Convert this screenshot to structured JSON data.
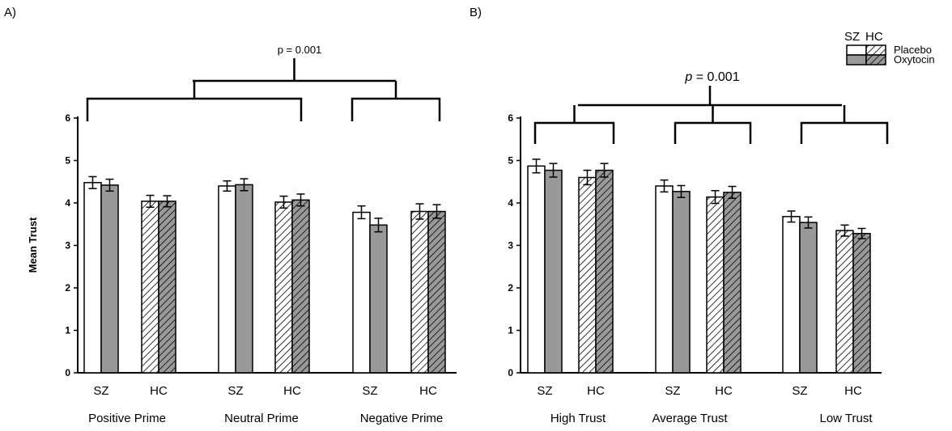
{
  "panels": [
    {
      "label": "A)",
      "ylabel": "Mean Trust",
      "chart_data": {
        "type": "bar",
        "ylim": [
          0,
          6
        ],
        "yticks": [
          0,
          1,
          2,
          3,
          4,
          5,
          6
        ],
        "groups": [
          {
            "name": "Positive Prime",
            "subgroups": [
              "SZ",
              "HC"
            ]
          },
          {
            "name": "Neutral Prime",
            "subgroups": [
              "SZ",
              "HC"
            ]
          },
          {
            "name": "Negative Prime",
            "subgroups": [
              "SZ",
              "HC"
            ]
          }
        ],
        "series": [
          {
            "name": "Placebo",
            "population": "SZ",
            "values": [
              4.48,
              4.4,
              3.78
            ]
          },
          {
            "name": "Oxytocin",
            "population": "SZ",
            "values": [
              4.42,
              4.43,
              3.48
            ]
          },
          {
            "name": "Placebo",
            "population": "HC",
            "values": [
              4.04,
              4.02,
              3.8
            ]
          },
          {
            "name": "Oxytocin",
            "population": "HC",
            "values": [
              4.04,
              4.07,
              3.8
            ]
          }
        ],
        "errors": [
          [
            0.14,
            0.12,
            0.15
          ],
          [
            0.14,
            0.14,
            0.16
          ],
          [
            0.14,
            0.14,
            0.18
          ],
          [
            0.13,
            0.14,
            0.16
          ]
        ],
        "annotation": "p = 0.001",
        "annotation_italic_p": false
      }
    },
    {
      "label": "B)",
      "ylabel": "",
      "chart_data": {
        "type": "bar",
        "ylim": [
          0,
          6
        ],
        "yticks": [
          0,
          1,
          2,
          3,
          4,
          5,
          6
        ],
        "groups": [
          {
            "name": "High Trust",
            "subgroups": [
              "SZ",
              "HC"
            ]
          },
          {
            "name": "Average Trust",
            "subgroups": [
              "SZ",
              "HC"
            ]
          },
          {
            "name": "Low Trust",
            "subgroups": [
              "SZ",
              "HC"
            ]
          }
        ],
        "series": [
          {
            "name": "Placebo",
            "population": "SZ",
            "values": [
              4.87,
              4.4,
              3.68
            ]
          },
          {
            "name": "Oxytocin",
            "population": "SZ",
            "values": [
              4.77,
              4.27,
              3.54
            ]
          },
          {
            "name": "Placebo",
            "population": "HC",
            "values": [
              4.6,
              4.14,
              3.35
            ]
          },
          {
            "name": "Oxytocin",
            "population": "HC",
            "values": [
              4.77,
              4.25,
              3.28
            ]
          }
        ],
        "errors": [
          [
            0.16,
            0.14,
            0.13
          ],
          [
            0.16,
            0.14,
            0.13
          ],
          [
            0.17,
            0.15,
            0.13
          ],
          [
            0.16,
            0.14,
            0.12
          ]
        ],
        "annotation": "p = 0.001",
        "annotation_italic_p": true
      }
    }
  ],
  "legend": {
    "header_sz": "SZ",
    "header_hc": "HC",
    "rows": [
      "Placebo",
      "Oxytocin"
    ]
  },
  "colors": {
    "placebo_fill": "#ffffff",
    "oxytocin_fill": "#999999",
    "stroke": "#000000"
  }
}
